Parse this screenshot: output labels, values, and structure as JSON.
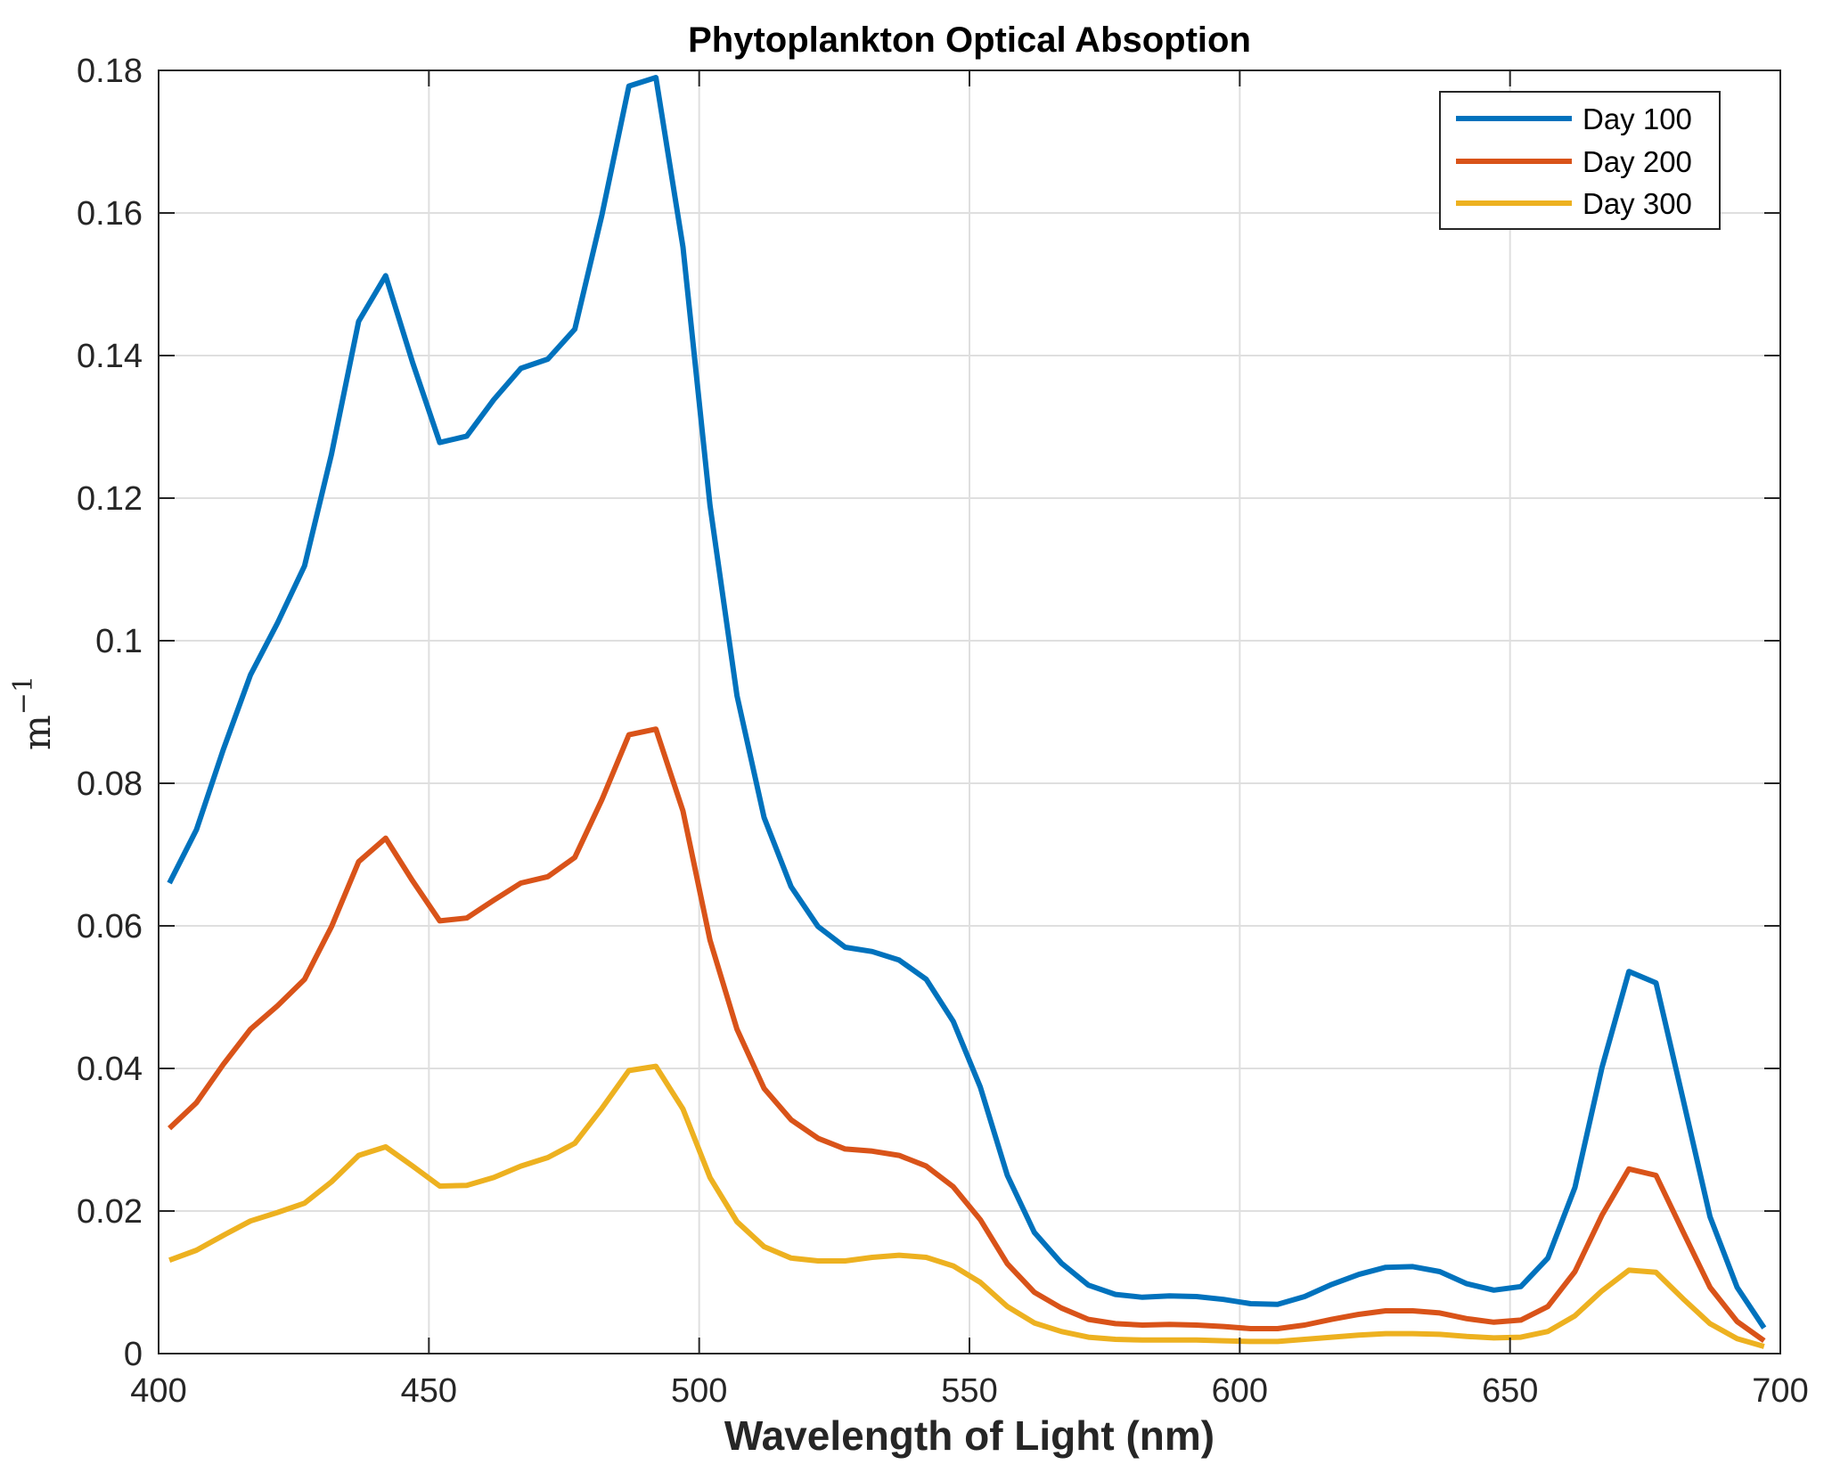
{
  "chart_data": {
    "type": "line",
    "title": "Phytoplankton Optical Absoption",
    "xlabel": "Wavelength of Light (nm)",
    "ylabel_base": "m",
    "ylabel_exp": "−1",
    "xlim": [
      400,
      700
    ],
    "ylim": [
      0,
      0.18
    ],
    "xticks": [
      400,
      450,
      500,
      550,
      600,
      650,
      700
    ],
    "xtick_labels": [
      "400",
      "450",
      "500",
      "550",
      "600",
      "650",
      "700"
    ],
    "yticks": [
      0,
      0.02,
      0.04,
      0.06,
      0.08,
      0.1,
      0.12,
      0.14,
      0.16,
      0.18
    ],
    "ytick_labels": [
      "0",
      "0.02",
      "0.04",
      "0.06",
      "0.08",
      "0.1",
      "0.12",
      "0.14",
      "0.16",
      "0.18"
    ],
    "grid": true,
    "legend_position": "top-right",
    "x": [
      402,
      407,
      412,
      417,
      422,
      427,
      432,
      437,
      442,
      447,
      452,
      457,
      462,
      467,
      472,
      477,
      482,
      487,
      492,
      497,
      502,
      507,
      512,
      517,
      522,
      527,
      532,
      537,
      542,
      547,
      552,
      557,
      562,
      567,
      572,
      577,
      582,
      587,
      592,
      597,
      602,
      607,
      612,
      617,
      622,
      627,
      632,
      637,
      642,
      647,
      652,
      657,
      662,
      667,
      672,
      677,
      682,
      687,
      692,
      697
    ],
    "series": [
      {
        "name": "Day 100",
        "color": "#0072BD",
        "values": [
          0.066,
          0.0735,
          0.0848,
          0.0952,
          0.1025,
          0.1105,
          0.1262,
          0.1448,
          0.1512,
          0.139,
          0.1278,
          0.1287,
          0.1338,
          0.1382,
          0.1395,
          0.1437,
          0.1597,
          0.1778,
          0.179,
          0.1552,
          0.119,
          0.0923,
          0.0752,
          0.0655,
          0.0599,
          0.057,
          0.0564,
          0.0552,
          0.0525,
          0.0466,
          0.0374,
          0.025,
          0.017,
          0.0127,
          0.0096,
          0.0083,
          0.0079,
          0.0081,
          0.008,
          0.0076,
          0.007,
          0.0069,
          0.008,
          0.0097,
          0.0111,
          0.0121,
          0.0122,
          0.0115,
          0.0098,
          0.0089,
          0.0094,
          0.0134,
          0.0233,
          0.0401,
          0.0536,
          0.052,
          0.0357,
          0.0192,
          0.0093,
          0.0036
        ]
      },
      {
        "name": "Day 200",
        "color": "#D95319",
        "values": [
          0.0316,
          0.0352,
          0.0406,
          0.0455,
          0.0488,
          0.0525,
          0.0599,
          0.069,
          0.0723,
          0.0663,
          0.0607,
          0.0611,
          0.0636,
          0.066,
          0.0669,
          0.0696,
          0.0777,
          0.0868,
          0.0876,
          0.0761,
          0.058,
          0.0455,
          0.0372,
          0.0328,
          0.0302,
          0.0287,
          0.0284,
          0.0278,
          0.0263,
          0.0234,
          0.0188,
          0.0126,
          0.0086,
          0.0064,
          0.0048,
          0.0042,
          0.004,
          0.0041,
          0.004,
          0.0038,
          0.0035,
          0.0035,
          0.004,
          0.0048,
          0.0055,
          0.006,
          0.006,
          0.0057,
          0.0049,
          0.0044,
          0.0047,
          0.0066,
          0.0115,
          0.0194,
          0.0259,
          0.025,
          0.0171,
          0.0093,
          0.0045,
          0.0018
        ]
      },
      {
        "name": "Day 300",
        "color": "#EDB120",
        "values": [
          0.0131,
          0.0145,
          0.0166,
          0.0186,
          0.0198,
          0.0211,
          0.0241,
          0.0278,
          0.029,
          0.0263,
          0.0235,
          0.0236,
          0.0247,
          0.0263,
          0.0275,
          0.0295,
          0.0344,
          0.0397,
          0.0403,
          0.0343,
          0.0247,
          0.0185,
          0.015,
          0.0134,
          0.013,
          0.013,
          0.0135,
          0.0138,
          0.0135,
          0.0123,
          0.01,
          0.0066,
          0.0043,
          0.0031,
          0.0023,
          0.002,
          0.0019,
          0.0019,
          0.0019,
          0.0018,
          0.0017,
          0.0017,
          0.002,
          0.0023,
          0.0026,
          0.0028,
          0.0028,
          0.0027,
          0.0024,
          0.0022,
          0.0023,
          0.0031,
          0.0053,
          0.0088,
          0.0117,
          0.0114,
          0.0077,
          0.0042,
          0.0021,
          0.001
        ]
      }
    ]
  }
}
